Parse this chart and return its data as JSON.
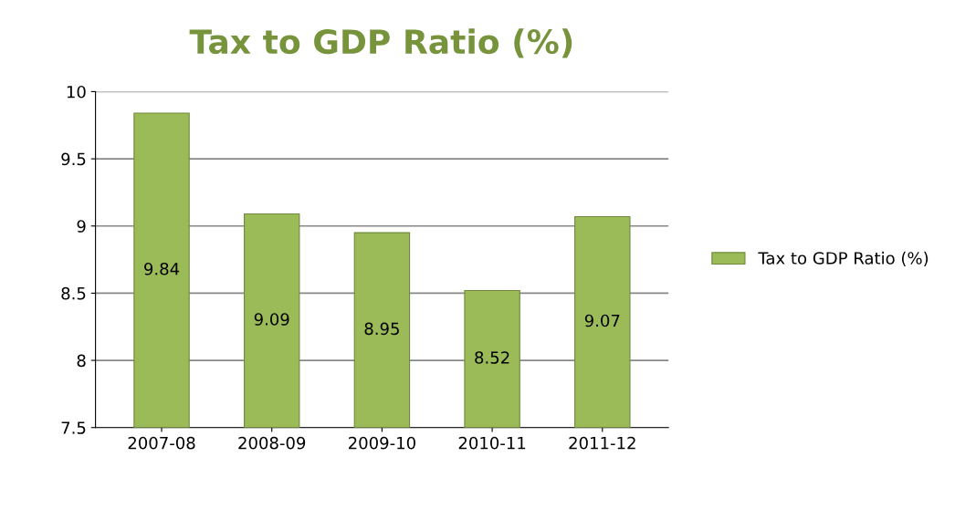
{
  "chart_data": {
    "type": "bar",
    "title": "Tax to GDP Ratio (%)",
    "categories": [
      "2007-08",
      "2008-09",
      "2009-10",
      "2010-11",
      "2011-12"
    ],
    "series": [
      {
        "name": "Tax to GDP Ratio (%)",
        "color": "#9bbb59",
        "values": [
          9.84,
          9.09,
          8.95,
          8.52,
          9.07
        ]
      }
    ],
    "ylim": [
      7.5,
      10
    ],
    "yticks": [
      7.5,
      8,
      8.5,
      9,
      9.5,
      10
    ],
    "grid": "y",
    "legend": "right",
    "data_labels": true
  }
}
